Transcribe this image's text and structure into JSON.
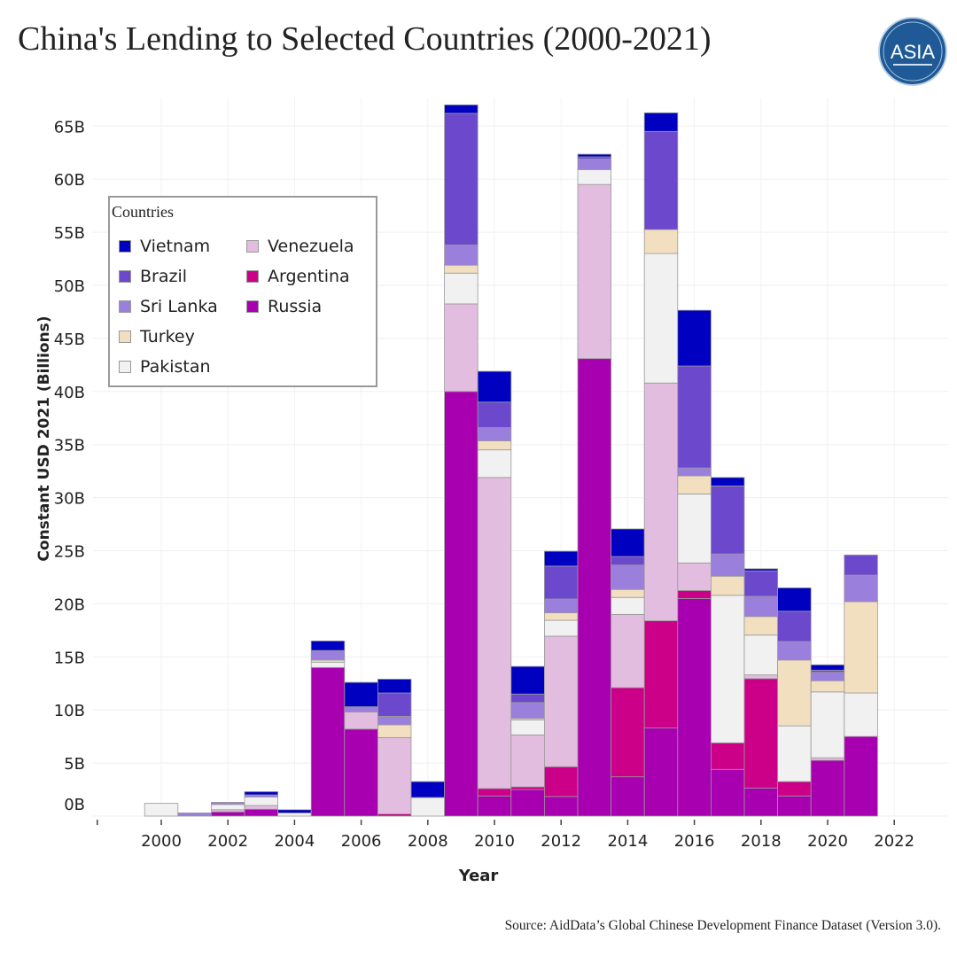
{
  "title": "China's Lending to Selected Countries (2000-2021)",
  "source": "Source: AidData’s Global Chinese Development Finance Dataset (Version 3.0).",
  "logo": {
    "text": "ASIA",
    "color": "#1f5a96"
  },
  "chart_data": {
    "type": "bar",
    "stacked": true,
    "title": "China's Lending to Selected Countries (2000-2021)",
    "xlabel": "Year",
    "ylabel": "Constant USD 2021 (Billions)",
    "ylim": [
      0,
      68
    ],
    "xlim": [
      1998,
      2022.5
    ],
    "grid": true,
    "legend_title": "Countries",
    "legend_position": "top-left",
    "x_ticks": [
      "2000",
      "2002",
      "2004",
      "2006",
      "2008",
      "2010",
      "2012",
      "2014",
      "2016",
      "2018",
      "2020",
      "2022"
    ],
    "y_ticks": [
      "0B",
      "5B",
      "10B",
      "15B",
      "20B",
      "25B",
      "30B",
      "35B",
      "40B",
      "45B",
      "50B",
      "55B",
      "60B",
      "65B"
    ],
    "categories": [
      2000,
      2001,
      2002,
      2003,
      2004,
      2005,
      2006,
      2007,
      2008,
      2009,
      2010,
      2011,
      2012,
      2013,
      2014,
      2015,
      2016,
      2017,
      2018,
      2019,
      2020,
      2021
    ],
    "series": [
      {
        "name": "Russia",
        "color": "#a800b0",
        "values": [
          0,
          0,
          0.4,
          0.65,
          0,
          14.0,
          8.2,
          0,
          0,
          40.0,
          1.9,
          2.5,
          1.85,
          43.1,
          3.7,
          8.3,
          20.5,
          4.4,
          2.65,
          1.9,
          5.25,
          7.5
        ]
      },
      {
        "name": "Argentina",
        "color": "#cc0088",
        "values": [
          0,
          0,
          0,
          0,
          0,
          0,
          0,
          0.2,
          0,
          0,
          0.7,
          0.25,
          2.8,
          0,
          8.4,
          10.1,
          0.75,
          2.5,
          10.3,
          1.35,
          0,
          0
        ]
      },
      {
        "name": "Venezuela",
        "color": "#e2bde0",
        "values": [
          0,
          0,
          0.2,
          0.35,
          0,
          0,
          1.6,
          7.2,
          0,
          8.25,
          29.3,
          4.9,
          12.3,
          16.4,
          6.9,
          22.4,
          2.6,
          0,
          0.35,
          0,
          0.25,
          0
        ]
      },
      {
        "name": "Pakistan",
        "color": "#f1f1f1",
        "values": [
          1.2,
          0,
          0.5,
          0.8,
          0.3,
          0.5,
          0,
          0,
          1.75,
          2.9,
          2.6,
          1.4,
          1.5,
          1.4,
          1.6,
          12.2,
          6.5,
          13.9,
          3.75,
          5.25,
          6.2,
          4.1
        ]
      },
      {
        "name": "Turkey",
        "color": "#f2dfc0",
        "values": [
          0,
          0,
          0,
          0,
          0,
          0.2,
          0,
          1.2,
          0,
          0.75,
          0.85,
          0.15,
          0.7,
          0,
          0.75,
          2.25,
          1.7,
          1.8,
          1.75,
          6.2,
          1.05,
          8.6
        ]
      },
      {
        "name": "Sri Lanka",
        "color": "#9b7fdc",
        "values": [
          0,
          0.3,
          0.2,
          0.2,
          0,
          0.9,
          0.5,
          0.8,
          0,
          1.9,
          1.25,
          1.5,
          1.3,
          1.0,
          2.3,
          0,
          0.75,
          2.1,
          1.9,
          1.75,
          0.8,
          2.5
        ]
      },
      {
        "name": "Brazil",
        "color": "#6b48cc",
        "values": [
          0,
          0,
          0,
          0,
          0,
          0,
          0,
          2.2,
          0,
          12.4,
          2.4,
          0.8,
          3.1,
          0.2,
          0.8,
          9.25,
          9.6,
          6.4,
          2.4,
          2.85,
          0.2,
          1.9
        ]
      },
      {
        "name": "Vietnam",
        "color": "#0000c0",
        "values": [
          0,
          0,
          0,
          0.3,
          0.3,
          0.9,
          2.3,
          1.3,
          1.5,
          0.8,
          2.9,
          2.6,
          1.4,
          0.25,
          2.6,
          1.75,
          5.25,
          0.8,
          0.2,
          2.2,
          0.5,
          0
        ]
      }
    ],
    "legend_order": [
      "Vietnam",
      "Brazil",
      "Sri Lanka",
      "Turkey",
      "Pakistan",
      "Venezuela",
      "Argentina",
      "Russia"
    ]
  }
}
